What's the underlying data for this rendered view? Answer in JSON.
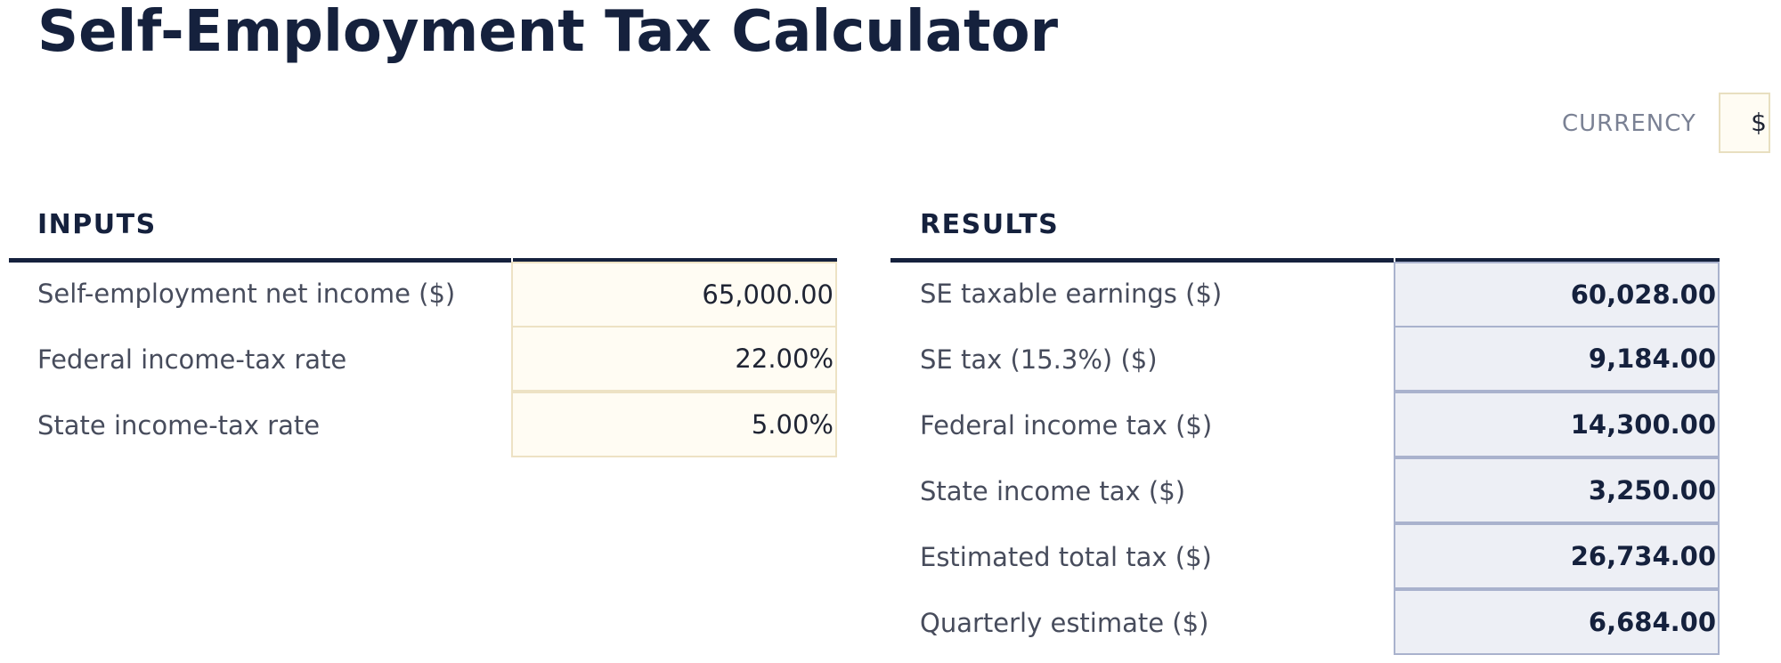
{
  "page": {
    "title": "Self-Employment Tax Calculator"
  },
  "currency": {
    "label": "CURRENCY",
    "value": "$"
  },
  "inputs": {
    "heading": "INPUTS",
    "rows": [
      {
        "label": "Self-employment net income ($)",
        "value": "65,000.00"
      },
      {
        "label": "Federal income-tax rate",
        "value": "22.00%"
      },
      {
        "label": "State income-tax rate",
        "value": "5.00%"
      }
    ]
  },
  "results": {
    "heading": "RESULTS",
    "rows": [
      {
        "label": "SE taxable earnings ($)",
        "value": "60,028.00"
      },
      {
        "label": "SE tax (15.3%) ($)",
        "value": "9,184.00"
      },
      {
        "label": "Federal income tax ($)",
        "value": "14,300.00"
      },
      {
        "label": "State income tax ($)",
        "value": "3,250.00"
      },
      {
        "label": "Estimated total tax ($)",
        "value": "26,734.00"
      },
      {
        "label": "Quarterly estimate ($)",
        "value": "6,684.00"
      }
    ]
  },
  "colors": {
    "navy": "#15213d",
    "input_fill": "#fffcf3",
    "input_border": "#ede2c4",
    "result_fill": "#edeff5",
    "result_border": "#a9b2cd",
    "label_text": "#474c5c",
    "muted_text": "#7a8194"
  }
}
